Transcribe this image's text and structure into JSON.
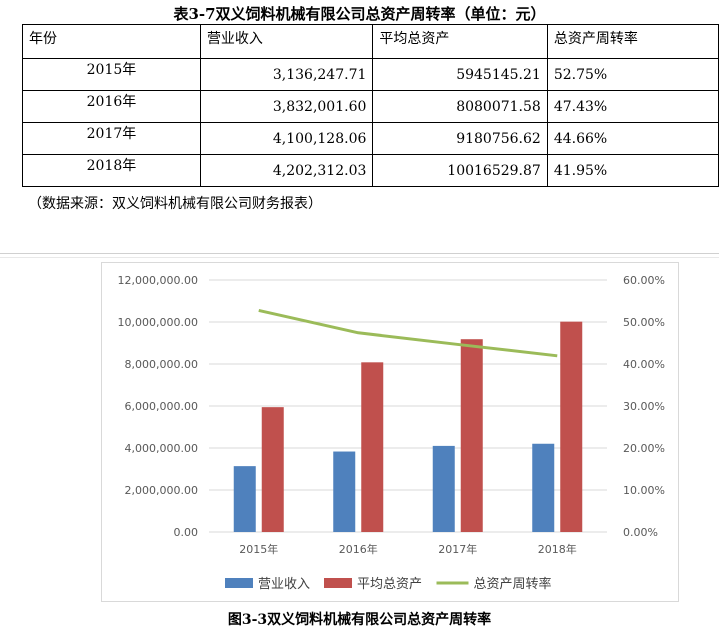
{
  "table": {
    "title": "表3-7双义饲料机械有限公司总资产周转率（单位：元）",
    "headers": [
      "年份",
      "营业收入",
      "平均总资产",
      "总资产周转率"
    ],
    "rows": [
      {
        "year": "2015年",
        "revenue": "3,136,247.71",
        "assets": "5945145.21",
        "turnover": "52.75%"
      },
      {
        "year": "2016年",
        "revenue": "3,832,001.60",
        "assets": "8080071.58",
        "turnover": "47.43%"
      },
      {
        "year": "2017年",
        "revenue": "4,100,128.06",
        "assets": "9180756.62",
        "turnover": "44.66%"
      },
      {
        "year": "2018年",
        "revenue": "4,202,312.03",
        "assets": "10016529.87",
        "turnover": "41.95%"
      }
    ],
    "source": "（数据来源：双义饲料机械有限公司财务报表）"
  },
  "chart_data": {
    "type": "bar",
    "categories": [
      "2015年",
      "2016年",
      "2017年",
      "2018年"
    ],
    "series": [
      {
        "name": "营业收入",
        "type": "bar",
        "axis": "left",
        "color": "#4f81bd",
        "values": [
          3136247.71,
          3832001.6,
          4100128.06,
          4202312.03
        ]
      },
      {
        "name": "平均总资产",
        "type": "bar",
        "axis": "left",
        "color": "#c0504d",
        "values": [
          5945145.21,
          8080071.58,
          9180756.62,
          10016529.87
        ]
      },
      {
        "name": "总资产周转率",
        "type": "line",
        "axis": "right",
        "color": "#9bbb59",
        "values": [
          52.75,
          47.43,
          44.66,
          41.95
        ]
      }
    ],
    "ylim_left": [
      0,
      12000000
    ],
    "ylim_right": [
      0,
      60
    ],
    "y_left_ticks": [
      "0.00",
      "2,000,000.00",
      "4,000,000.00",
      "6,000,000.00",
      "8,000,000.00",
      "10,000,000.00",
      "12,000,000.00"
    ],
    "y_right_ticks": [
      "0.00%",
      "10.00%",
      "20.00%",
      "30.00%",
      "40.00%",
      "50.00%",
      "60.00%"
    ],
    "grid": true,
    "legend_position": "bottom",
    "caption": "图3-3双义饲料机械有限公司总资产周转率"
  }
}
